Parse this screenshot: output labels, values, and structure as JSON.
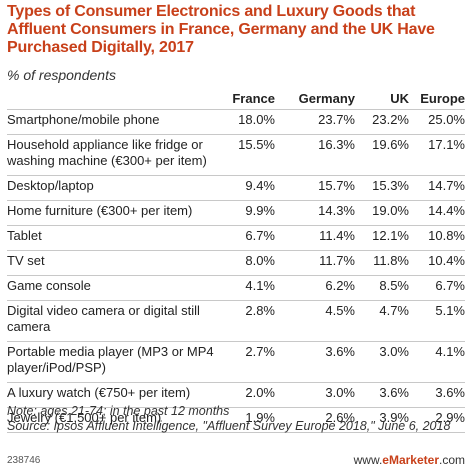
{
  "chart_data": {
    "type": "table",
    "title": "Types of Consumer Electronics and Luxury Goods that Affluent Consumers in France, Germany and the UK Have Purchased Digitally, 2017",
    "subtitle": "% of respondents",
    "columns": [
      "France",
      "Germany",
      "UK",
      "Europe"
    ],
    "rows": [
      {
        "label": "Smartphone/mobile phone",
        "values": [
          "18.0%",
          "23.7%",
          "23.2%",
          "25.0%"
        ]
      },
      {
        "label": "Household appliance like fridge or washing machine (€300+ per item)",
        "values": [
          "15.5%",
          "16.3%",
          "19.6%",
          "17.1%"
        ]
      },
      {
        "label": "Desktop/laptop",
        "values": [
          "9.4%",
          "15.7%",
          "15.3%",
          "14.7%"
        ]
      },
      {
        "label": "Home furniture (€300+ per item)",
        "values": [
          "9.9%",
          "14.3%",
          "19.0%",
          "14.4%"
        ]
      },
      {
        "label": "Tablet",
        "values": [
          "6.7%",
          "11.4%",
          "12.1%",
          "10.8%"
        ]
      },
      {
        "label": "TV set",
        "values": [
          "8.0%",
          "11.7%",
          "11.8%",
          "10.4%"
        ]
      },
      {
        "label": "Game console",
        "values": [
          "4.1%",
          "6.2%",
          "8.5%",
          "6.7%"
        ]
      },
      {
        "label": "Digital video camera or digital still camera",
        "values": [
          "2.8%",
          "4.5%",
          "4.7%",
          "5.1%"
        ]
      },
      {
        "label": "Portable media player (MP3 or MP4 player/iPod/PSP)",
        "values": [
          "2.7%",
          "3.6%",
          "3.0%",
          "4.1%"
        ]
      },
      {
        "label": "A luxury watch (€750+ per item)",
        "values": [
          "2.0%",
          "3.0%",
          "3.6%",
          "3.6%"
        ]
      },
      {
        "label": "Jewelry (€1,500+ per item)",
        "values": [
          "1.9%",
          "2.6%",
          "3.9%",
          "2.9%"
        ]
      }
    ],
    "note": "Note: ages 21-74; in the past 12 months",
    "source": "Source: Ipsos Affluent Intelligence, \"Affluent Survey Europe 2018,\" June 6, 2018",
    "chart_id": "238746",
    "brand_prefix": "www.",
    "brand_name": "eMarketer",
    "brand_suffix": ".com"
  }
}
